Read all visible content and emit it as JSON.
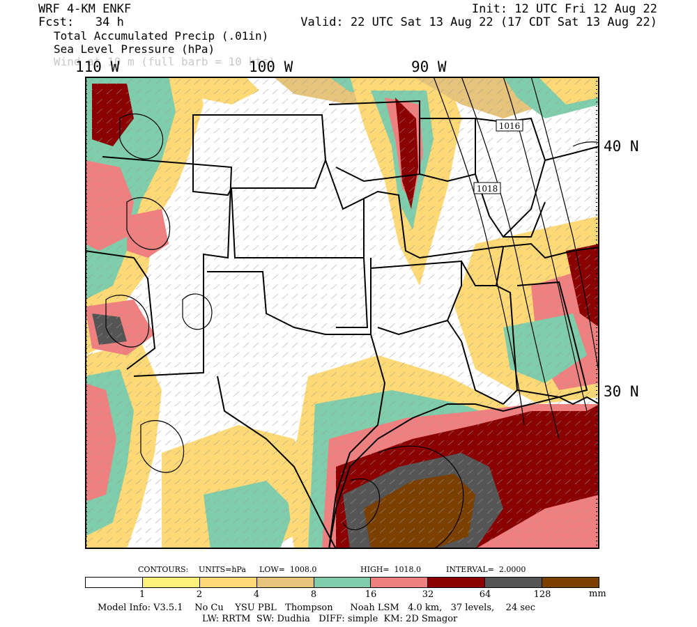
{
  "header": {
    "model": "WRF 4-KM ENKF",
    "forecast": "Fcst:   34 h",
    "init": "Init: 12 UTC Fri 12 Aug 22",
    "valid": "Valid: 22 UTC Sat 13 Aug 22 (17 CDT Sat 13 Aug 22)",
    "fields": [
      "Total Accumulated Precip (.01in)",
      "Sea Level Pressure (hPa)",
      "Wind at 10 m (full barb = 10 kts)"
    ]
  },
  "axes": {
    "lon_labels": [
      "110 W",
      "100 W",
      "90 W"
    ],
    "lat_labels": [
      "40 N",
      "30 N"
    ]
  },
  "contours": {
    "label": "CONTOURS:",
    "units": "UNITS=hPa",
    "low": "LOW=  1008.0",
    "high": "HIGH=  1018.0",
    "interval": "INTERVAL=  2.0000"
  },
  "isobar_labels": [
    "1016",
    "1018"
  ],
  "legend": {
    "colors": [
      "#ffffff",
      "#fdf17a",
      "#fed976",
      "#e6c47b",
      "#7fcdaa",
      "#f08080",
      "#8b0000",
      "#555555",
      "#7b3f00"
    ],
    "ticks": [
      "1",
      "2",
      "4",
      "8",
      "16",
      "32",
      "64",
      "128"
    ],
    "unit": "mm"
  },
  "model_info": {
    "line1": "Model Info: V3.5.1    No Cu    YSU PBL   Thompson      Noah LSM   4.0 km,   37 levels,    24 sec",
    "line2": "LW: RRTM  SW: Dudhia   DIFF: simple  KM: 2D Smagor"
  }
}
